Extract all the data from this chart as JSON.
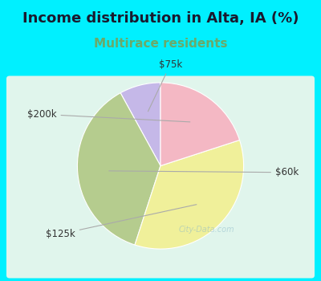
{
  "title": "Income distribution in Alta, IA (%)",
  "subtitle": "Multirace residents",
  "labels": [
    "$75k",
    "$60k",
    "$125k",
    "$200k"
  ],
  "values": [
    8,
    37,
    35,
    20
  ],
  "colors": [
    "#c5b8e8",
    "#b5cc8e",
    "#f0f09a",
    "#f4b8c4"
  ],
  "startangle": 90,
  "title_fontsize": 13,
  "subtitle_fontsize": 11,
  "bg_color": "#00f0ff",
  "panel_color": "#e0f5ec",
  "subtitle_color": "#6aaa6a",
  "label_color": "#333333",
  "arrow_color": "#aaaaaa"
}
